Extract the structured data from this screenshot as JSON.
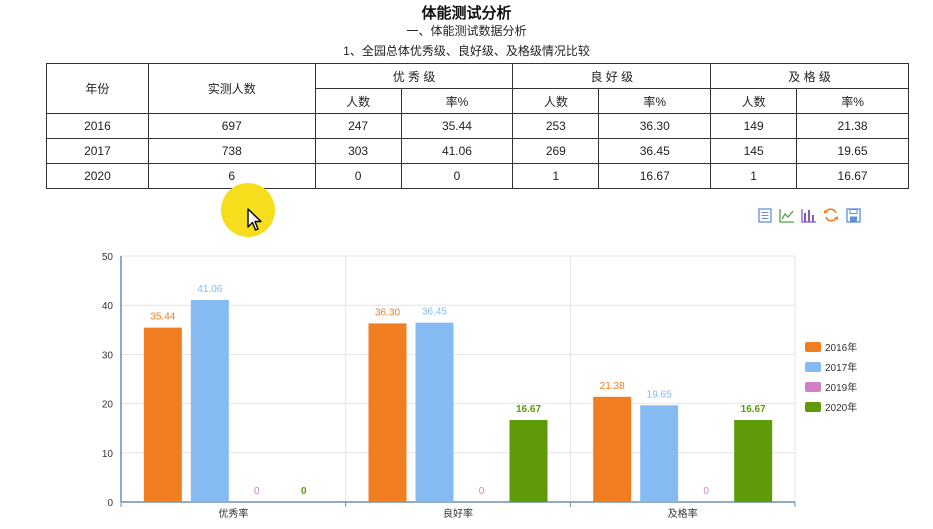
{
  "header": {
    "title": "体能测试分析",
    "section": "一、体能测试数据分析",
    "subsection": "1、全园总体优秀级、良好级、及格级情况比较"
  },
  "table": {
    "col_year": "年份",
    "col_total": "实测人数",
    "groups": [
      "优 秀 级",
      "良 好 级",
      "及 格 级"
    ],
    "sub_count": "人数",
    "sub_rate": "率%",
    "rows": [
      {
        "year": "2016",
        "total": "697",
        "ex_n": "247",
        "ex_r": "35.44",
        "gd_n": "253",
        "gd_r": "36.30",
        "ps_n": "149",
        "ps_r": "21.38"
      },
      {
        "year": "2017",
        "total": "738",
        "ex_n": "303",
        "ex_r": "41.06",
        "gd_n": "269",
        "gd_r": "36.45",
        "ps_n": "145",
        "ps_r": "19.65"
      },
      {
        "year": "2020",
        "total": "6",
        "ex_n": "0",
        "ex_r": "0",
        "gd_n": "1",
        "gd_r": "16.67",
        "ps_n": "1",
        "ps_r": "16.67"
      }
    ]
  },
  "toolbox": {
    "icons": [
      "data-view-icon",
      "line-chart-icon",
      "bar-chart-icon",
      "refresh-icon",
      "save-image-icon"
    ]
  },
  "chart_data": {
    "type": "bar",
    "categories": [
      "优秀率",
      "良好率",
      "及格率"
    ],
    "series": [
      {
        "name": "2016年",
        "color": "#f07d1f",
        "values": [
          35.44,
          36.3,
          21.38
        ],
        "labels": [
          "35.44",
          "36.30",
          "21.38"
        ]
      },
      {
        "name": "2017年",
        "color": "#85bbf2",
        "values": [
          41.06,
          36.45,
          19.65
        ],
        "labels": [
          "41.06",
          "36.45",
          "19.65"
        ]
      },
      {
        "name": "2019年",
        "color": "#d37fc6",
        "values": [
          0,
          0,
          0
        ],
        "labels": [
          "0",
          "0",
          "0"
        ]
      },
      {
        "name": "2020年",
        "color": "#5f9a0b",
        "values": [
          0,
          16.67,
          16.67
        ],
        "labels": [
          "0",
          "16.67",
          "16.67"
        ]
      }
    ],
    "ylim": [
      0,
      50
    ],
    "yticks": [
      0,
      10,
      20,
      30,
      40,
      50
    ],
    "grid": true,
    "legend_position": "right"
  }
}
